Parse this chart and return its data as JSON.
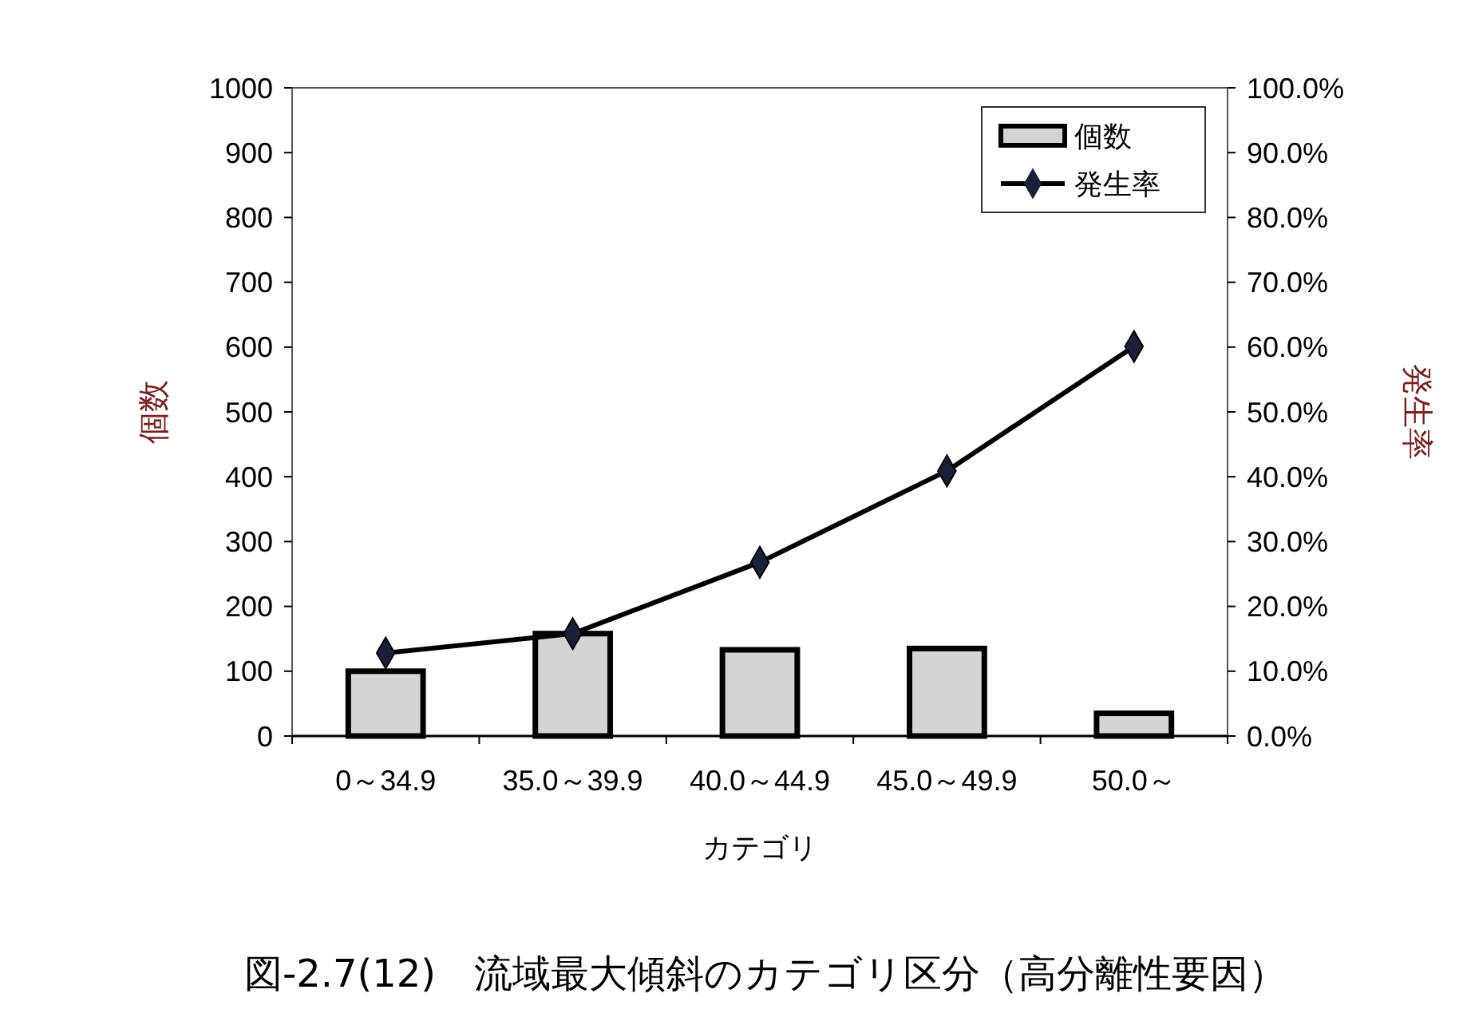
{
  "chart_data": {
    "type": "bar",
    "title": "図-2.7(12)　流域最大傾斜のカテゴリ区分（高分離性要因）",
    "xlabel": "カテゴリ",
    "ylabel": "個数",
    "y2label": "発生率",
    "categories": [
      "0～34.9",
      "35.0～39.9",
      "40.0～44.9",
      "45.0～49.9",
      "50.0～"
    ],
    "series": [
      {
        "name": "個数",
        "color": "#d4d4d4",
        "values": [
          100,
          158,
          133,
          135,
          35
        ]
      },
      {
        "name": "発生率",
        "type": "line",
        "axis": "y2",
        "color": "#000000",
        "marker": "diamond",
        "values": [
          12.8,
          15.8,
          26.8,
          40.9,
          60.1
        ]
      }
    ],
    "ylim": [
      0,
      1000
    ],
    "yticks": [
      0,
      100,
      200,
      300,
      400,
      500,
      600,
      700,
      800,
      900,
      1000
    ],
    "y2lim": [
      0,
      100
    ],
    "y2ticks": [
      {
        "value": 0,
        "label": "0.0%"
      },
      {
        "value": 10,
        "label": "10.0%"
      },
      {
        "value": 20,
        "label": "20.0%"
      },
      {
        "value": 30,
        "label": "30.0%"
      },
      {
        "value": 40,
        "label": "40.0%"
      },
      {
        "value": 50,
        "label": "50.0%"
      },
      {
        "value": 60,
        "label": "60.0%"
      },
      {
        "value": 70,
        "label": "70.0%"
      },
      {
        "value": 80,
        "label": "80.0%"
      },
      {
        "value": 90,
        "label": "90.0%"
      },
      {
        "value": 100,
        "label": "100.0%"
      }
    ],
    "legend": "top right",
    "grid": false
  }
}
